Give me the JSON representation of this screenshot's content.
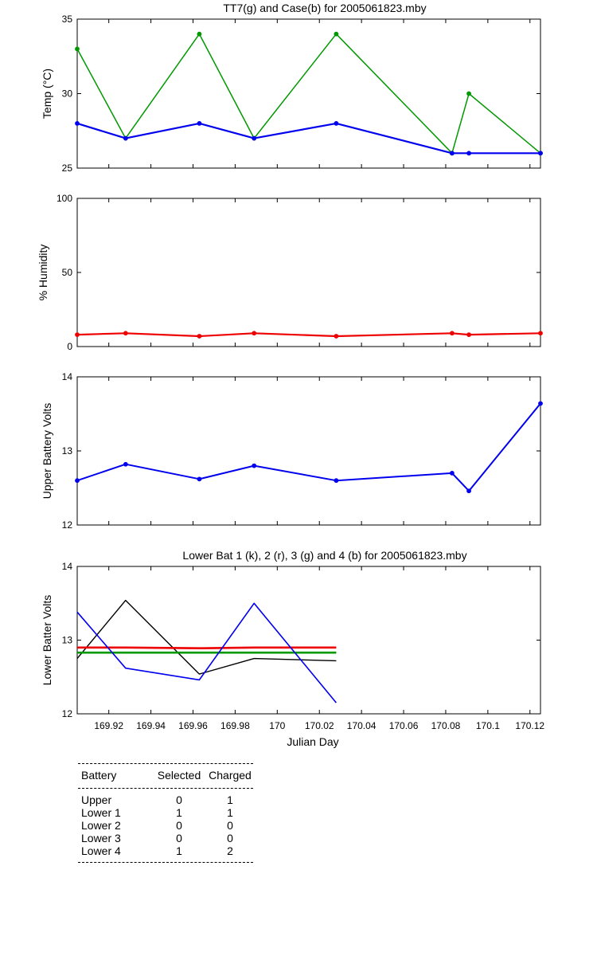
{
  "chart_data": [
    {
      "type": "line",
      "title": "TT7(g) and Case(b) for 2005061823.mby",
      "xlabel": "",
      "ylabel": "Temp  (°C)",
      "xlim": [
        169.905,
        170.125
      ],
      "ylim": [
        25,
        35
      ],
      "yticks": [
        25,
        30,
        35
      ],
      "series": [
        {
          "color": "#009900",
          "points": [
            [
              169.905,
              33
            ],
            [
              169.928,
              27
            ],
            [
              169.963,
              34
            ],
            [
              169.989,
              27
            ],
            [
              170.028,
              34
            ],
            [
              170.083,
              26
            ],
            [
              170.091,
              30
            ],
            [
              170.125,
              26
            ]
          ]
        },
        {
          "color": "#0000ee",
          "points": [
            [
              169.905,
              28
            ],
            [
              169.928,
              27
            ],
            [
              169.963,
              28
            ],
            [
              169.989,
              27
            ],
            [
              170.028,
              28
            ],
            [
              170.083,
              26
            ],
            [
              170.091,
              26
            ],
            [
              170.125,
              26
            ]
          ]
        }
      ]
    },
    {
      "type": "line",
      "title": "",
      "xlabel": "",
      "ylabel": "% Humidity",
      "xlim": [
        169.905,
        170.125
      ],
      "ylim": [
        0,
        100
      ],
      "yticks": [
        0,
        50,
        100
      ],
      "series": [
        {
          "color": "#ee0000",
          "points": [
            [
              169.905,
              8
            ],
            [
              169.928,
              9
            ],
            [
              169.963,
              7
            ],
            [
              169.989,
              9
            ],
            [
              170.028,
              7
            ],
            [
              170.083,
              9
            ],
            [
              170.091,
              8
            ],
            [
              170.125,
              9
            ]
          ]
        }
      ]
    },
    {
      "type": "line",
      "title": "",
      "xlabel": "",
      "ylabel": "Upper Battery Volts",
      "xlim": [
        169.905,
        170.125
      ],
      "ylim": [
        12,
        14
      ],
      "yticks": [
        12,
        13,
        14
      ],
      "series": [
        {
          "color": "#0000ee",
          "points": [
            [
              169.905,
              12.6
            ],
            [
              169.928,
              12.82
            ],
            [
              169.963,
              12.62
            ],
            [
              169.989,
              12.8
            ],
            [
              170.028,
              12.6
            ],
            [
              170.083,
              12.7
            ],
            [
              170.091,
              12.46
            ],
            [
              170.125,
              13.64
            ]
          ]
        }
      ]
    },
    {
      "type": "line",
      "title": "Lower Bat 1 (k), 2 (r), 3 (g) and 4 (b) for 2005061823.mby",
      "xlabel": "Julian Day",
      "ylabel": "Lower Batter Volts",
      "xlim": [
        169.905,
        170.125
      ],
      "ylim": [
        12,
        14
      ],
      "yticks": [
        12,
        13,
        14
      ],
      "xticks": [
        "169.92",
        "169.94",
        "169.96",
        "169.98",
        "170",
        "170.02",
        "170.04",
        "170.06",
        "170.08",
        "170.1",
        "170.12"
      ],
      "series": [
        {
          "color": "#000000",
          "points": [
            [
              169.905,
              12.75
            ],
            [
              169.928,
              13.54
            ],
            [
              169.963,
              12.54
            ],
            [
              169.989,
              12.75
            ],
            [
              170.028,
              12.72
            ]
          ]
        },
        {
          "color": "#ee0000",
          "points": [
            [
              169.905,
              12.9
            ],
            [
              169.928,
              12.9
            ],
            [
              169.963,
              12.89
            ],
            [
              169.989,
              12.9
            ],
            [
              170.028,
              12.9
            ]
          ]
        },
        {
          "color": "#009900",
          "points": [
            [
              169.905,
              12.83
            ],
            [
              169.928,
              12.83
            ],
            [
              169.963,
              12.83
            ],
            [
              169.989,
              12.83
            ],
            [
              170.028,
              12.83
            ]
          ]
        },
        {
          "color": "#0000ee",
          "points": [
            [
              169.905,
              13.38
            ],
            [
              169.928,
              12.62
            ],
            [
              169.963,
              12.46
            ],
            [
              169.989,
              13.5
            ],
            [
              170.028,
              12.15
            ]
          ]
        }
      ]
    }
  ],
  "battery_table": {
    "headers": [
      "Battery",
      "Selected",
      "Charged"
    ],
    "rows": [
      [
        "Upper",
        "0",
        "1"
      ],
      [
        "Lower 1",
        "1",
        "1"
      ],
      [
        "Lower 2",
        "0",
        "0"
      ],
      [
        "Lower 3",
        "0",
        "0"
      ],
      [
        "Lower 4",
        "1",
        "2"
      ]
    ]
  }
}
